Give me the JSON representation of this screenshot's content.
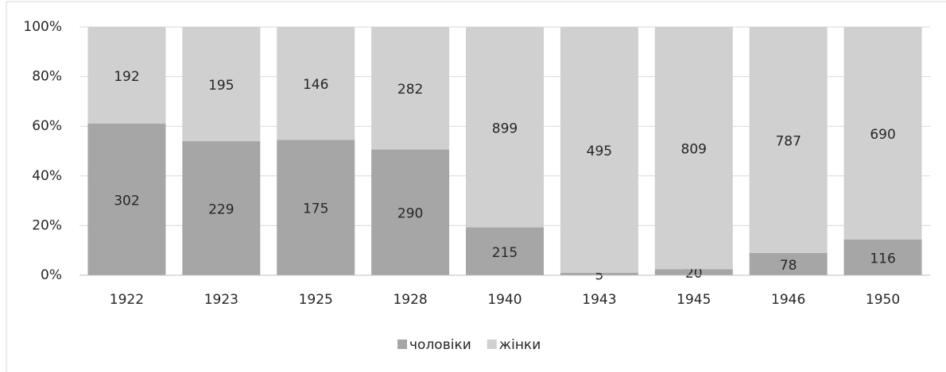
{
  "chart_data": {
    "type": "bar",
    "stacking": "percent",
    "categories": [
      "1922",
      "1923",
      "1925",
      "1928",
      "1940",
      "1943",
      "1945",
      "1946",
      "1950"
    ],
    "series": [
      {
        "name": "чоловіки",
        "color": "#a6a6a6",
        "values": [
          302,
          229,
          175,
          290,
          215,
          5,
          20,
          78,
          116
        ]
      },
      {
        "name": "жінки",
        "color": "#d0d0d0",
        "values": [
          192,
          195,
          146,
          282,
          899,
          495,
          809,
          787,
          690
        ]
      }
    ],
    "ylim": [
      0,
      100
    ],
    "yticks": [
      {
        "value": 0,
        "label": "0%"
      },
      {
        "value": 20,
        "label": "20%"
      },
      {
        "value": 40,
        "label": "40%"
      },
      {
        "value": 60,
        "label": "60%"
      },
      {
        "value": 80,
        "label": "80%"
      },
      {
        "value": 100,
        "label": "100%"
      }
    ],
    "grid": true,
    "legend": "bottom"
  }
}
